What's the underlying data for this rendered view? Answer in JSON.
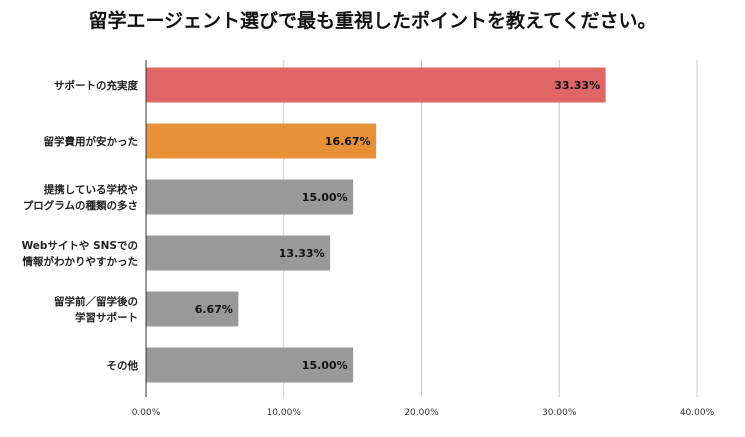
{
  "chart_data": {
    "type": "bar",
    "orientation": "horizontal",
    "title": "留学エージェント選びで最も重視したポイントを教えてください。",
    "categories": [
      [
        "サポートの充実度"
      ],
      [
        "留学費用が安かった"
      ],
      [
        "提携している学校や",
        "プログラムの種類の多さ"
      ],
      [
        "Webサイトや SNSでの",
        "情報がわかりやすかった"
      ],
      [
        "留学前／留学後の",
        "学習サポート"
      ],
      [
        "その他"
      ]
    ],
    "values": [
      33.33,
      16.67,
      15.0,
      13.33,
      6.67,
      15.0
    ],
    "value_labels": [
      "33.33%",
      "16.67%",
      "15.00%",
      "13.33%",
      "6.67%",
      "15.00%"
    ],
    "bar_colors": [
      "#e06666",
      "#e69138",
      "#999999",
      "#999999",
      "#999999",
      "#999999"
    ],
    "xlim": [
      0,
      40
    ],
    "xticks": [
      0,
      10,
      20,
      30,
      40
    ],
    "xtick_labels": [
      "0.00%",
      "10.00%",
      "20.00%",
      "30.00%",
      "40.00%"
    ],
    "grid": true,
    "gridline_color": "#cccccc",
    "axis_color": "#333333"
  }
}
